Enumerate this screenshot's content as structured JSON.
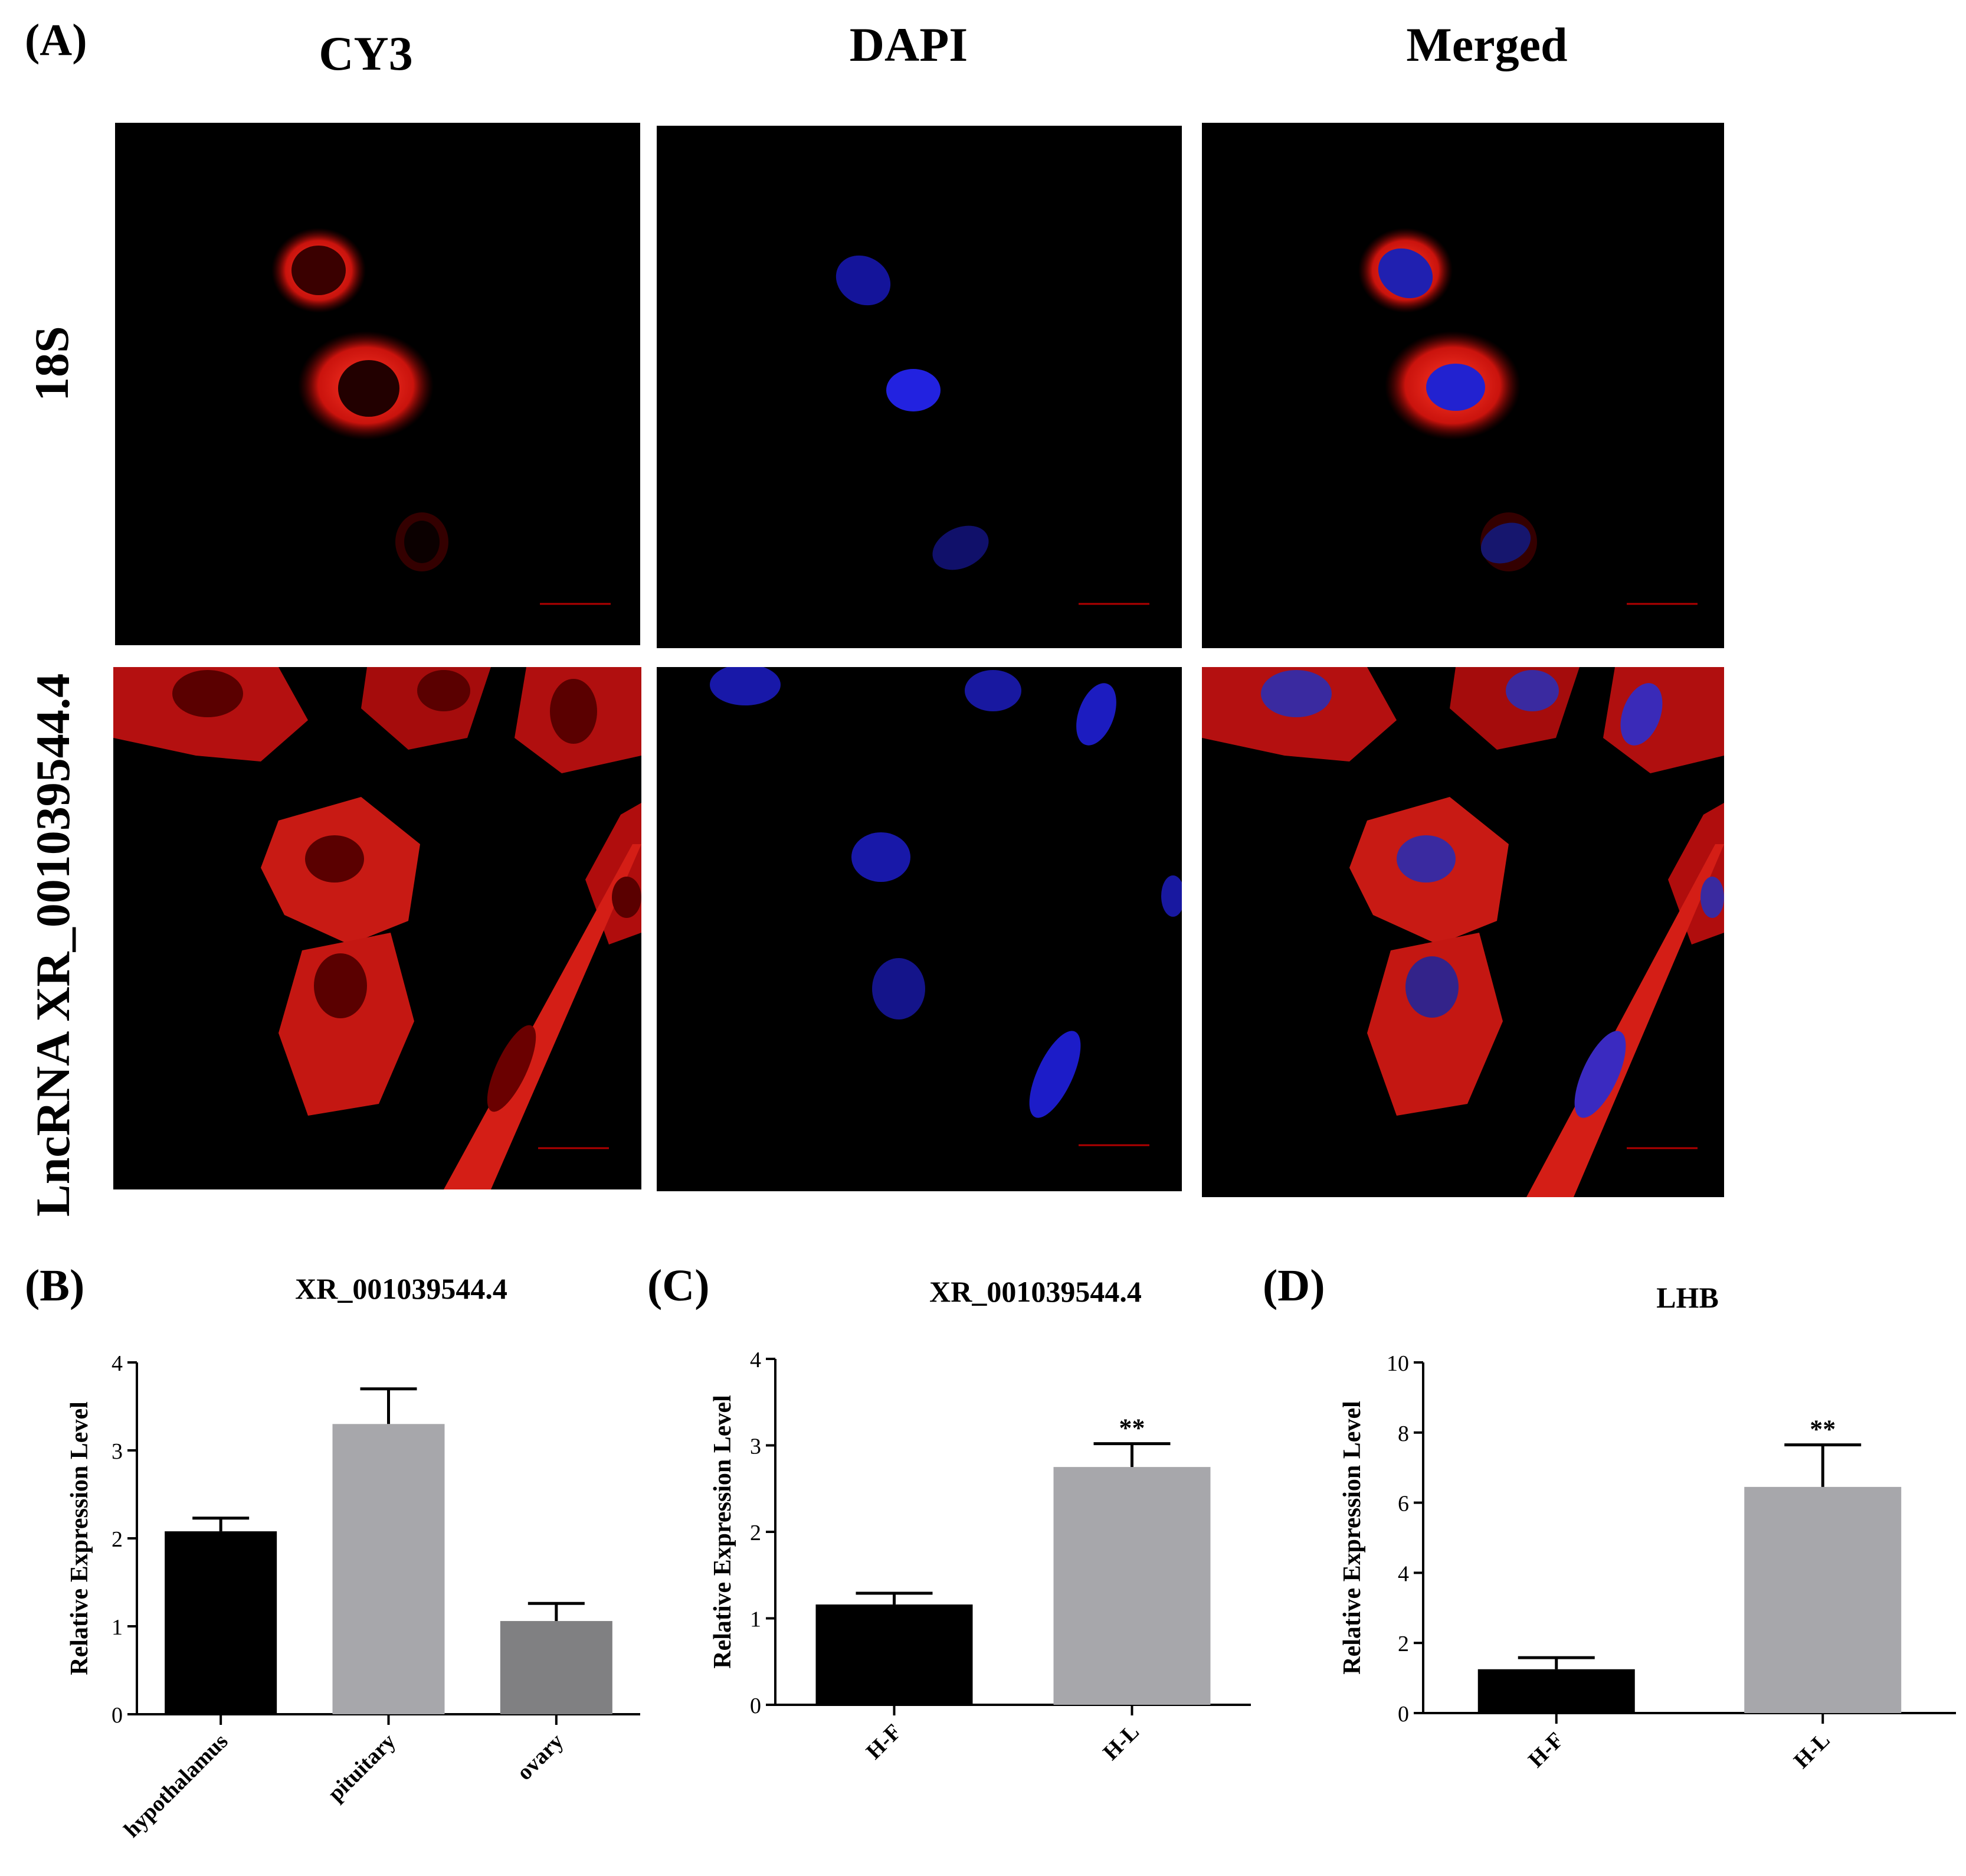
{
  "figure": {
    "panel_a": {
      "letter": "(A)",
      "columns": [
        "CY3",
        "DAPI",
        "Merged"
      ],
      "rows": [
        "18S",
        "LncRNA XR_001039544.4"
      ]
    },
    "panel_b": {
      "letter": "(B)"
    },
    "panel_c": {
      "letter": "(C)"
    },
    "panel_d": {
      "letter": "(D)"
    }
  },
  "chart_data": [
    {
      "type": "bar",
      "title": "XR_001039544.4",
      "ylabel": "Relative Expression Level",
      "xlabel": "",
      "categories": [
        "hypothalamus",
        "pituitary",
        "ovary"
      ],
      "values": [
        2.08,
        3.3,
        1.06
      ],
      "errors": [
        0.15,
        0.4,
        0.2
      ],
      "colors": [
        "#000000",
        "#a7a7ab",
        "#808082"
      ],
      "significance": [
        "",
        "",
        ""
      ],
      "ylim": [
        0,
        4
      ],
      "yticks": [
        "0",
        "1",
        "2",
        "3",
        "4"
      ],
      "grid": false
    },
    {
      "type": "bar",
      "title": "XR_001039544.4",
      "ylabel": "Relative Expression Level",
      "xlabel": "",
      "categories": [
        "H-F",
        "H-L"
      ],
      "values": [
        1.16,
        2.75
      ],
      "errors": [
        0.13,
        0.27
      ],
      "colors": [
        "#000000",
        "#a7a7ab"
      ],
      "significance": [
        "",
        "**"
      ],
      "ylim": [
        0,
        4
      ],
      "yticks": [
        "0",
        "1",
        "2",
        "3",
        "4"
      ],
      "grid": false
    },
    {
      "type": "bar",
      "title": "LHB",
      "ylabel": "Relative Expression Level",
      "xlabel": "",
      "categories": [
        "H-F",
        "H-L"
      ],
      "values": [
        1.25,
        6.45
      ],
      "errors": [
        0.33,
        1.2
      ],
      "colors": [
        "#000000",
        "#a7a7ab"
      ],
      "significance": [
        "",
        "**"
      ],
      "ylim": [
        0,
        10
      ],
      "yticks": [
        "0",
        "2",
        "4",
        "6",
        "8",
        "10"
      ],
      "grid": false
    }
  ]
}
